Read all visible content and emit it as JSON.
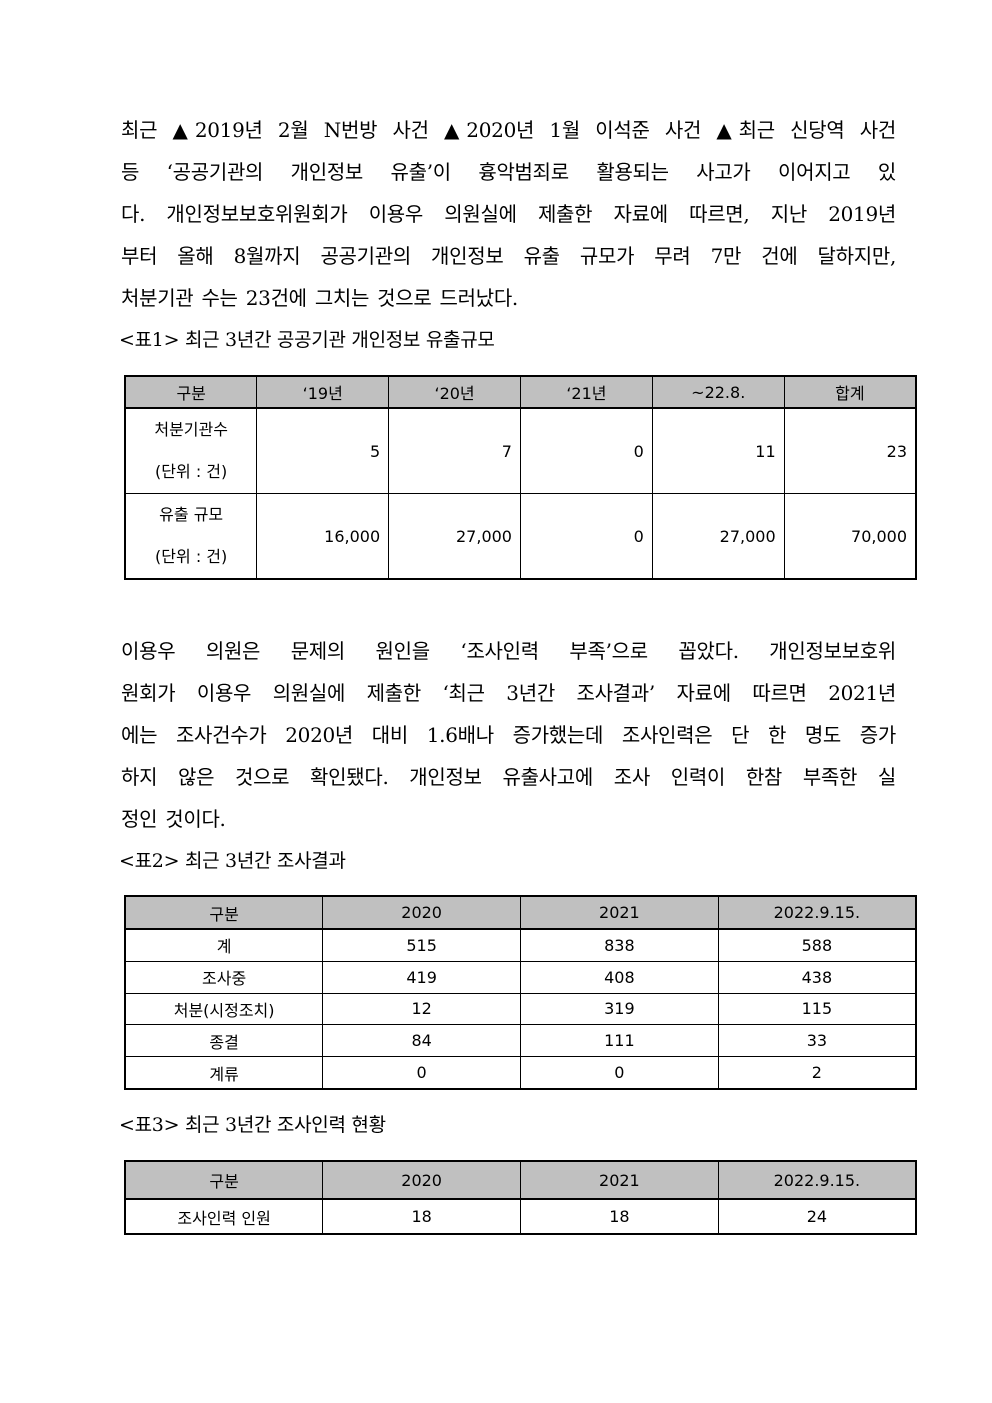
{
  "paragraph1": [
    " 최근 ▲2019년 2월 N번방 사건 ▲2020년 1월 이석준 사건 ▲최근 신당역 사건",
    "등 ‘공공기관의 개인정보 유출’이 흉악범죄로 활용되는 사고가 이어지고 있",
    "다. 개인정보보호위원회가 이용우 의원실에 제출한 자료에 따르면, 지난 2019년",
    "부터 올해 8월까지 공공기관의 개인정보 유출 규모가 무려 7만 건에 달하지만,",
    "처분기관 수는 23건에 그치는 것으로 드러났다."
  ],
  "table1": {
    "caption": "<표1> 최근 3년간 공공기관 개인정보 유출규모",
    "headers": [
      "구분",
      "‘19년",
      "‘20년",
      "‘21년",
      "~22.8.",
      "합계"
    ],
    "rows": [
      {
        "label": [
          "처분기관수",
          "(단위 : 건)"
        ],
        "values": [
          "5",
          "7",
          "0",
          "11",
          "23"
        ]
      },
      {
        "label": [
          "유출 규모",
          "(단위 : 건)"
        ],
        "values": [
          "16,000",
          "27,000",
          "0",
          "27,000",
          "70,000"
        ]
      }
    ]
  },
  "paragraph2": [
    " 이용우 의원은 문제의 원인을 ‘조사인력 부족’으로 꼽았다. 개인정보보호위",
    "원회가 이용우 의원실에 제출한 ‘최근 3년간 조사결과’ 자료에 따르면 2021년",
    "에는 조사건수가 2020년 대비 1.6배나 증가했는데 조사인력은 단 한 명도 증가",
    "하지 않은 것으로 확인됐다. 개인정보 유출사고에 조사 인력이 한참 부족한 실",
    "정인 것이다."
  ],
  "table2": {
    "caption": "<표2> 최근 3년간 조사결과",
    "headers": [
      "구분",
      "2020",
      "2021",
      "2022.9.15."
    ],
    "rows": [
      [
        "계",
        "515",
        "838",
        "588"
      ],
      [
        "조사중",
        "419",
        "408",
        "438"
      ],
      [
        "처분(시정조치)",
        "12",
        "319",
        "115"
      ],
      [
        "종결",
        "84",
        "111",
        "33"
      ],
      [
        "계류",
        "0",
        "0",
        "2"
      ]
    ]
  },
  "table3": {
    "caption": "<표3> 최근 3년간 조사인력 현황",
    "headers": [
      "구분",
      "2020",
      "2021",
      "2022.9.15."
    ],
    "rows": [
      [
        "조사인력 인원",
        "18",
        "18",
        "24"
      ]
    ]
  },
  "colors": {
    "header_bg": "#c0c0c0",
    "border": "#000000"
  }
}
